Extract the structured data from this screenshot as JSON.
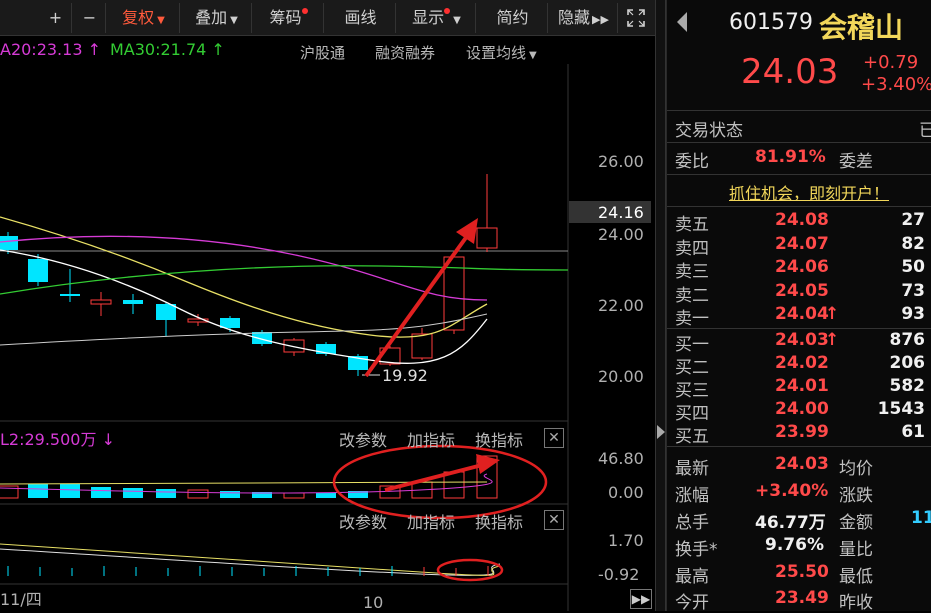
{
  "toolbar": {
    "plus": "+",
    "minus": "−",
    "fuquan": "复权",
    "diejia": "叠加",
    "chouma": "筹码",
    "huaxian": "画线",
    "xianshi": "显示",
    "jianyue": "简约",
    "yincang": "隐藏"
  },
  "ma_legend": {
    "ma20": "A20:23.13",
    "ma30": "MA30:21.74",
    "hugutong": "沪股通",
    "rongzi": "融资融券",
    "shezhi": "设置均线"
  },
  "price_axis": {
    "p26": "26.00",
    "p24": "24.00",
    "p22": "22.00",
    "p20": "20.00",
    "current": "24.16"
  },
  "low_marker": "19.92",
  "volume_panel": {
    "label": "L2:29.500万",
    "gaicanshu": "改参数",
    "jiazhibiao": "加指标",
    "huanzhibiao": "换指标",
    "axis_top": "46.80",
    "axis_bottom": "0.00"
  },
  "ind_panel": {
    "gaicanshu": "改参数",
    "jiazhibiao": "加指标",
    "huanzhibiao": "换指标",
    "axis_top": "1.70",
    "axis_bottom": "-0.92"
  },
  "date_axis": {
    "left": "11/四",
    "mid": "10"
  },
  "stock": {
    "code": "601579",
    "name": "会稽山",
    "price": "24.03",
    "change": "+0.79",
    "change_pct": "+3.40%",
    "status_label": "交易状态",
    "status_value": "已",
    "weibi_label": "委比",
    "weibi_value": "81.91%",
    "weicha_label": "委差",
    "promo": "抓住机会，即刻开户！"
  },
  "order_book": {
    "asks": [
      {
        "label": "卖五",
        "price": "24.08",
        "vol": "27"
      },
      {
        "label": "卖四",
        "price": "24.07",
        "vol": "82"
      },
      {
        "label": "卖三",
        "price": "24.06",
        "vol": "50"
      },
      {
        "label": "卖二",
        "price": "24.05",
        "vol": "73"
      },
      {
        "label": "卖一",
        "price": "24.04",
        "vol": "93"
      }
    ],
    "bids": [
      {
        "label": "买一",
        "price": "24.03",
        "vol": "876"
      },
      {
        "label": "买二",
        "price": "24.02",
        "vol": "206"
      },
      {
        "label": "买三",
        "price": "24.01",
        "vol": "582"
      },
      {
        "label": "买四",
        "price": "24.00",
        "vol": "1543"
      },
      {
        "label": "买五",
        "price": "23.99",
        "vol": "61"
      }
    ]
  },
  "quote": {
    "zuixin_label": "最新",
    "zuixin": "24.03",
    "junjia_label": "均价",
    "zhangfu_label": "涨幅",
    "zhangfu": "+3.40%",
    "zhangdie_label": "涨跌",
    "zongshou_label": "总手",
    "zongshou": "46.77万",
    "jine_label": "金额",
    "jine": "11",
    "huanshou_label": "换手*",
    "huanshou": "9.76%",
    "liangbi_label": "量比",
    "zuigao_label": "最高",
    "zuigao": "25.50",
    "zuidi_label": "最低",
    "jinkai_label": "今开",
    "jinkai": "23.49",
    "zuoshou_label": "昨收"
  },
  "colors": {
    "up": "#ff3b3b",
    "down": "#00e5ff",
    "ma5": "#ffffff",
    "ma10": "#e8e066",
    "ma20": "#d63bd6",
    "ma30": "#33cc33",
    "annotation": "#e02020"
  }
}
